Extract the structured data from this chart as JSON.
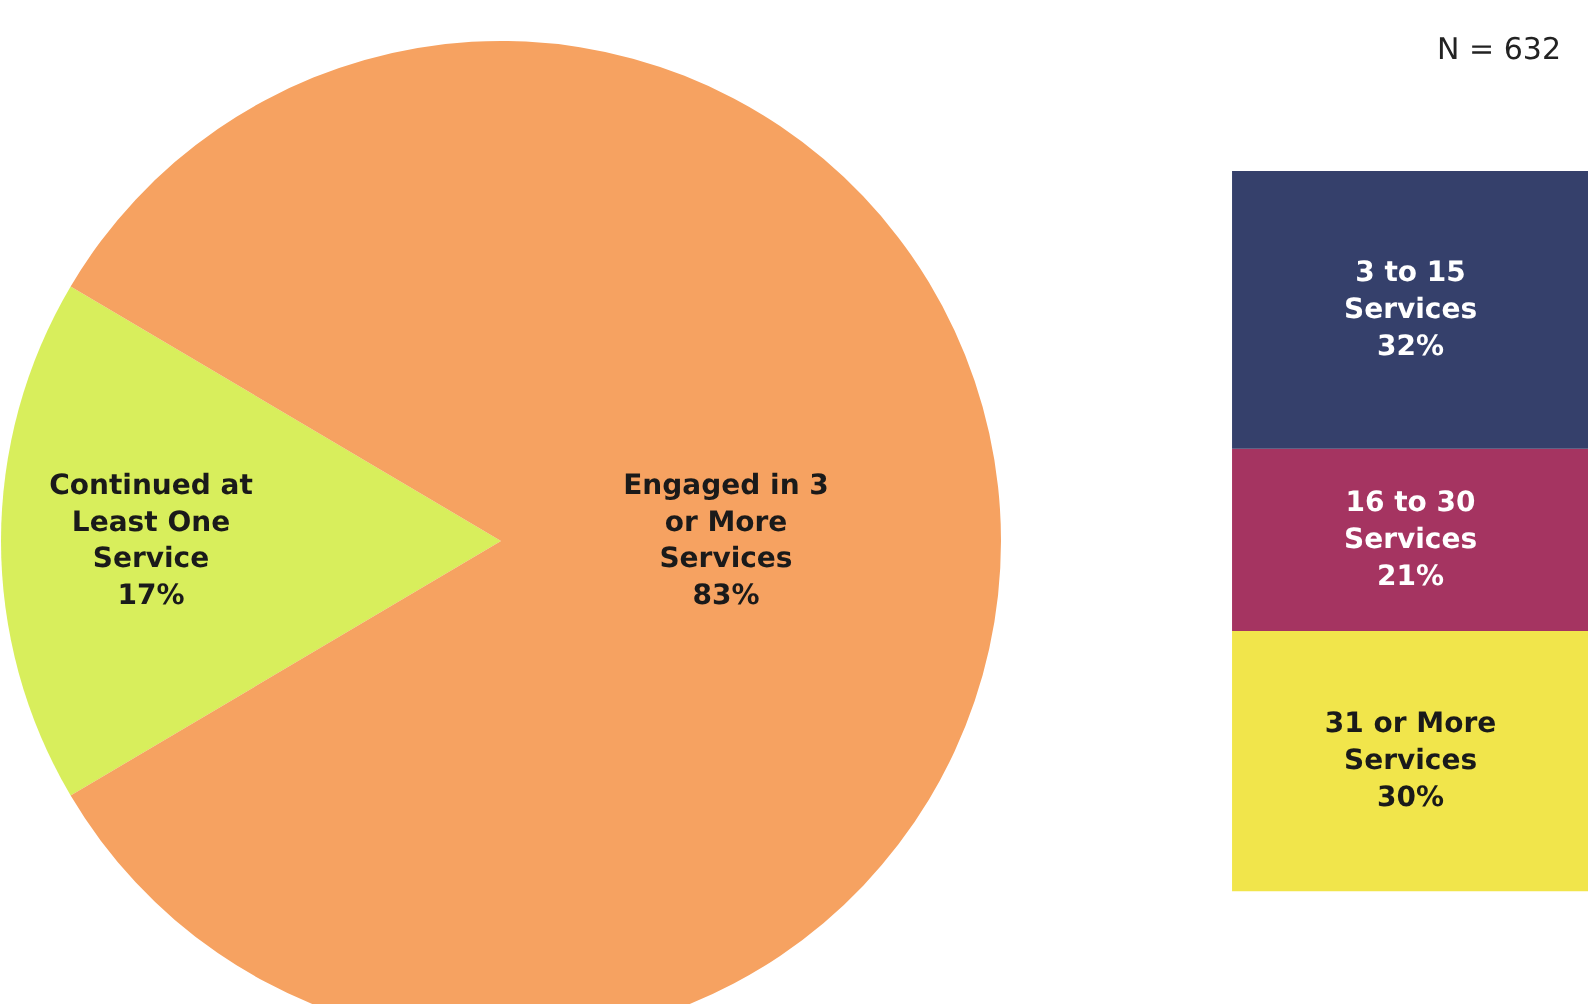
{
  "chart_data": [
    {
      "type": "pie",
      "categories": [
        "Continued at\nLeast One\nService",
        "Engaged in 3\nor More\nServices"
      ],
      "values": [
        17,
        83
      ],
      "colors": [
        "#d8ee5c",
        "#f6a261"
      ],
      "value_labels": [
        "17%",
        "83%"
      ]
    },
    {
      "type": "bar",
      "stacked": true,
      "categories": [
        null
      ],
      "tick_labels": false,
      "annotations": [
        "N = 632"
      ],
      "series": [
        {
          "name": "31 or More\nServices",
          "color": "#f1e54b",
          "values": [
            30
          ],
          "value_labels": [
            "30%"
          ]
        },
        {
          "name": "16 to 30\nServices",
          "color": "#a53461",
          "values": [
            21
          ],
          "value_labels": [
            "21%"
          ]
        },
        {
          "name": "3 to 15\nServices",
          "color": "#35406b",
          "values": [
            32
          ],
          "value_labels": [
            "32%"
          ]
        }
      ]
    }
  ]
}
